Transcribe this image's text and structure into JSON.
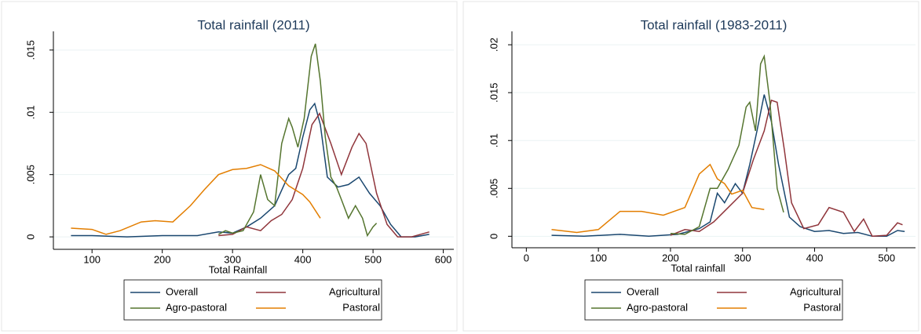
{
  "chart_data": [
    {
      "type": "line",
      "title": "Total rainfall (2011)",
      "x_label": "Total Rainfall",
      "xlim": [
        45,
        615
      ],
      "ylim": [
        -0.001,
        0.0165
      ],
      "xticks": [
        100,
        200,
        300,
        400,
        500,
        600
      ],
      "yticks": [
        0,
        {
          "value": 0.005,
          "label": ".005"
        },
        {
          "value": 0.01,
          "label": ".01"
        },
        {
          "value": 0.015,
          "label": ".015"
        }
      ],
      "grid": true,
      "series": [
        {
          "name": "Overall",
          "color": "#1a476f",
          "x": [
            70,
            100,
            150,
            200,
            250,
            280,
            300,
            320,
            340,
            360,
            380,
            390,
            400,
            410,
            417,
            425,
            435,
            450,
            465,
            480,
            495,
            510,
            525,
            540,
            560,
            580
          ],
          "values": [
            0.0001,
            0.0001,
            0,
            0.0001,
            0.0001,
            0.0004,
            0.0003,
            0.0008,
            0.0015,
            0.0025,
            0.005,
            0.0055,
            0.008,
            0.0102,
            0.0107,
            0.009,
            0.0048,
            0.004,
            0.0042,
            0.0048,
            0.0035,
            0.0025,
            0.001,
            0,
            0,
            0.0002
          ]
        },
        {
          "name": "Agricultural",
          "color": "#90353b",
          "x": [
            280,
            300,
            320,
            340,
            355,
            370,
            385,
            400,
            413,
            424,
            440,
            455,
            470,
            480,
            490,
            505,
            520,
            535,
            555,
            580
          ],
          "values": [
            0.0001,
            0.0002,
            0.0008,
            0.0005,
            0.0013,
            0.0018,
            0.003,
            0.0055,
            0.009,
            0.0099,
            0.0075,
            0.005,
            0.0072,
            0.0083,
            0.0075,
            0.0035,
            0.001,
            0,
            0,
            0.0004
          ]
        },
        {
          "name": "Agro-pastoral",
          "color": "#55752f",
          "x": [
            280,
            290,
            300,
            315,
            330,
            340,
            350,
            360,
            370,
            380,
            385,
            393,
            402,
            412,
            418,
            425,
            432,
            440,
            448,
            455,
            465,
            475,
            485,
            492,
            500,
            505
          ],
          "values": [
            0.0002,
            0.0005,
            0.0003,
            0.0005,
            0.002,
            0.005,
            0.003,
            0.0025,
            0.0075,
            0.0095,
            0.0088,
            0.0072,
            0.0095,
            0.0145,
            0.0155,
            0.0125,
            0.008,
            0.0048,
            0.004,
            0.003,
            0.0015,
            0.0025,
            0.0015,
            0.0001,
            0.0008,
            0.0011
          ]
        },
        {
          "name": "Pastoral",
          "color": "#e37e00",
          "x": [
            70,
            100,
            120,
            140,
            170,
            190,
            215,
            240,
            260,
            280,
            300,
            320,
            340,
            360,
            380,
            400,
            410,
            425
          ],
          "values": [
            0.0007,
            0.0006,
            0.0002,
            0.0005,
            0.0012,
            0.0013,
            0.0012,
            0.0025,
            0.0038,
            0.005,
            0.0054,
            0.0055,
            0.0058,
            0.0053,
            0.0041,
            0.0034,
            0.0028,
            0.0015
          ]
        }
      ]
    },
    {
      "type": "line",
      "title": "Total rainfall (1983-2011)",
      "x_label": "Total rainfall",
      "xlim": [
        -20,
        540
      ],
      "ylim": [
        -0.0012,
        0.0214
      ],
      "xticks": [
        0,
        100,
        200,
        300,
        400,
        500
      ],
      "yticks": [
        0,
        {
          "value": 0.005,
          "label": ".005"
        },
        {
          "value": 0.01,
          "label": ".01"
        },
        {
          "value": 0.015,
          "label": ".015"
        },
        {
          "value": 0.02,
          "label": ".02"
        }
      ],
      "grid": true,
      "series": [
        {
          "name": "Overall",
          "color": "#1a476f",
          "x": [
            35,
            80,
            130,
            170,
            210,
            240,
            255,
            265,
            275,
            290,
            300,
            310,
            320,
            330,
            340,
            350,
            365,
            380,
            400,
            420,
            440,
            460,
            480,
            500,
            515,
            525
          ],
          "values": [
            0.0001,
            0,
            0.0002,
            0,
            0.0002,
            0.0008,
            0.0015,
            0.0045,
            0.0035,
            0.0055,
            0.0045,
            0.0075,
            0.011,
            0.0148,
            0.012,
            0.0075,
            0.002,
            0.001,
            0.0005,
            0.0006,
            0.0003,
            0.0004,
            0,
            0,
            0.0006,
            0.0005
          ]
        },
        {
          "name": "Agricultural",
          "color": "#90353b",
          "x": [
            200,
            220,
            240,
            260,
            280,
            300,
            315,
            330,
            340,
            348,
            358,
            368,
            385,
            405,
            420,
            440,
            455,
            468,
            480,
            500,
            515,
            522
          ],
          "values": [
            0.0001,
            0.0007,
            0.0005,
            0.0015,
            0.003,
            0.0045,
            0.008,
            0.011,
            0.0142,
            0.014,
            0.009,
            0.0035,
            0.0008,
            0.0012,
            0.003,
            0.0025,
            0.0005,
            0.0018,
            0,
            0.0001,
            0.0014,
            0.0012
          ]
        },
        {
          "name": "Agro-pastoral",
          "color": "#55752f",
          "x": [
            200,
            220,
            240,
            255,
            265,
            280,
            295,
            305,
            310,
            318,
            325,
            330,
            338,
            348,
            357
          ],
          "values": [
            0.0003,
            0.0002,
            0.001,
            0.005,
            0.005,
            0.007,
            0.0095,
            0.0135,
            0.014,
            0.011,
            0.018,
            0.0188,
            0.014,
            0.005,
            0.0025
          ]
        },
        {
          "name": "Pastoral",
          "color": "#e37e00",
          "x": [
            35,
            70,
            100,
            130,
            160,
            190,
            220,
            240,
            255,
            265,
            275,
            285,
            300,
            313,
            330
          ],
          "values": [
            0.0007,
            0.0004,
            0.0007,
            0.0026,
            0.0026,
            0.0022,
            0.003,
            0.0065,
            0.0075,
            0.006,
            0.0055,
            0.0044,
            0.0048,
            0.003,
            0.0028
          ]
        }
      ]
    }
  ]
}
